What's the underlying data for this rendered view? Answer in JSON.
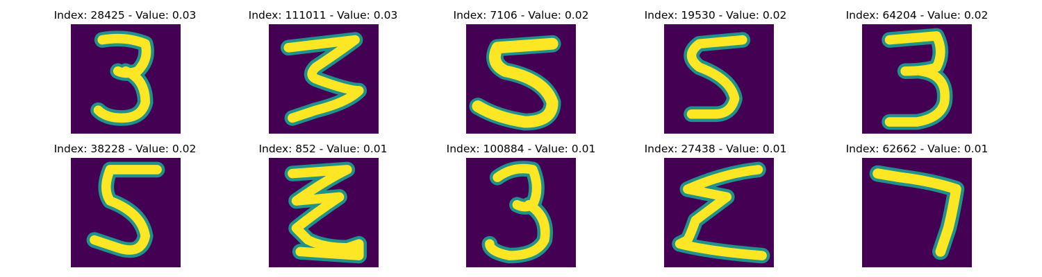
{
  "colors": {
    "background": "#440154",
    "mid": "#21918c",
    "bright": "#fde725"
  },
  "panels": [
    {
      "title": "Index: 28425 - Value: 0.03",
      "digit": "3"
    },
    {
      "title": "Index: 111011 - Value: 0.03",
      "digit": "3"
    },
    {
      "title": "Index: 7106 - Value: 0.02",
      "digit": "5"
    },
    {
      "title": "Index: 19530 - Value: 0.02",
      "digit": "5"
    },
    {
      "title": "Index: 64204 - Value: 0.02",
      "digit": "3"
    },
    {
      "title": "Index: 38228 - Value: 0.02",
      "digit": "5"
    },
    {
      "title": "Index: 852 - Value: 0.01",
      "digit": "z"
    },
    {
      "title": "Index: 100884 - Value: 0.01",
      "digit": "3"
    },
    {
      "title": "Index: 27438 - Value: 0.01",
      "digit": "sigma"
    },
    {
      "title": "Index: 62662 - Value: 0.01",
      "digit": "7"
    }
  ]
}
